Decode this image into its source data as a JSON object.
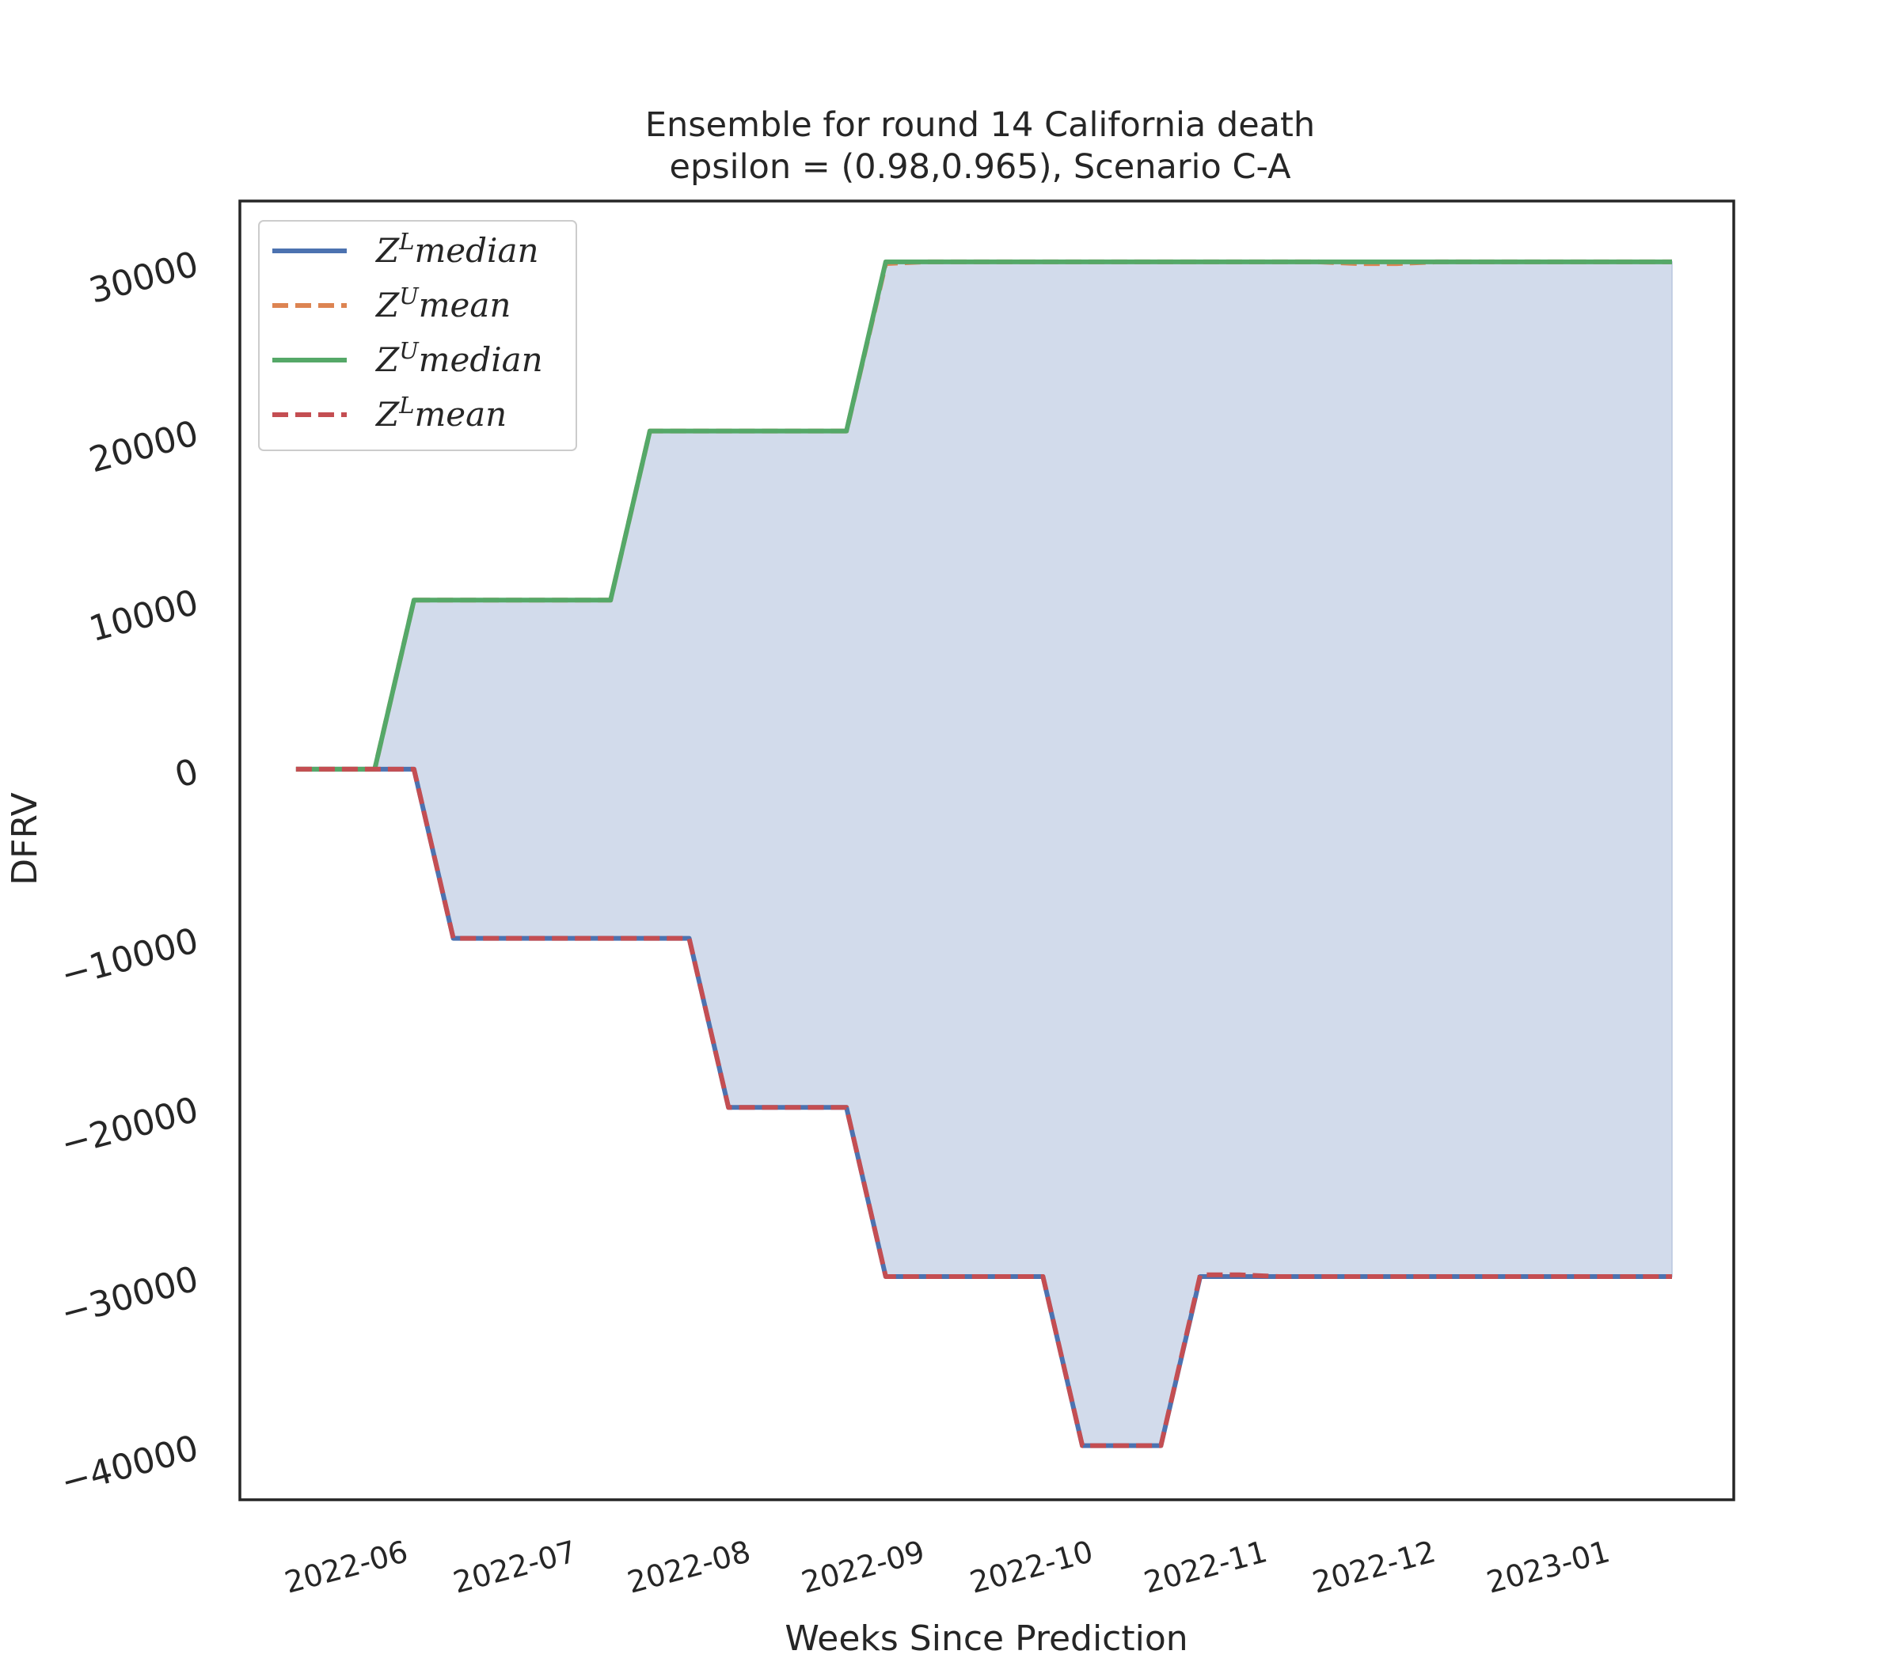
{
  "chart_data": {
    "type": "line",
    "title": "Ensemble for round 14 California  death",
    "subtitle": "epsilon = (0.98,0.965), Scenario C-A",
    "xlabel": "Weeks Since Prediction",
    "ylabel": "DFRV",
    "x_ticks": [
      "2022-06",
      "2022-07",
      "2022-08",
      "2022-09",
      "2022-10",
      "2022-11",
      "2022-12",
      "2023-01"
    ],
    "y_ticks": [
      {
        "value": 30000,
        "label": "30000"
      },
      {
        "value": 20000,
        "label": "20000"
      },
      {
        "value": 10000,
        "label": "10000"
      },
      {
        "value": 0,
        "label": "0"
      },
      {
        "value": -10000,
        "label": "−10000"
      },
      {
        "value": -20000,
        "label": "−20000"
      },
      {
        "value": -30000,
        "label": "−30000"
      },
      {
        "value": -40000,
        "label": "−40000"
      }
    ],
    "xlim": [
      "2022-05-06",
      "2023-01-27"
    ],
    "ylim": [
      -43200,
      33600
    ],
    "grid": false,
    "legend_position": "top-left",
    "fill": {
      "between": [
        "Z^U median",
        "Z^L median"
      ],
      "color": "#d2dbeb"
    },
    "series": [
      {
        "name": "Z^L median",
        "legend": {
          "base": "Z",
          "sup": "L",
          "suffix": "median"
        },
        "color": "#4c72b0",
        "dash": "solid",
        "points": [
          [
            "2022-05-16",
            0
          ],
          [
            "2022-05-23",
            0
          ],
          [
            "2022-05-30",
            0
          ],
          [
            "2022-06-06",
            0
          ],
          [
            "2022-06-13",
            -10000
          ],
          [
            "2022-06-20",
            -10000
          ],
          [
            "2022-06-27",
            -10000
          ],
          [
            "2022-07-04",
            -10000
          ],
          [
            "2022-07-11",
            -10000
          ],
          [
            "2022-07-18",
            -10000
          ],
          [
            "2022-07-25",
            -10000
          ],
          [
            "2022-08-01",
            -20000
          ],
          [
            "2022-08-08",
            -20000
          ],
          [
            "2022-08-15",
            -20000
          ],
          [
            "2022-08-22",
            -20000
          ],
          [
            "2022-08-29",
            -30000
          ],
          [
            "2022-09-05",
            -30000
          ],
          [
            "2022-09-12",
            -30000
          ],
          [
            "2022-09-19",
            -30000
          ],
          [
            "2022-09-26",
            -30000
          ],
          [
            "2022-10-03",
            -40000
          ],
          [
            "2022-10-10",
            -40000
          ],
          [
            "2022-10-17",
            -40000
          ],
          [
            "2022-10-24",
            -30000
          ],
          [
            "2022-10-31",
            -30000
          ],
          [
            "2022-11-07",
            -30000
          ],
          [
            "2022-11-14",
            -30000
          ],
          [
            "2022-11-21",
            -30000
          ],
          [
            "2022-11-28",
            -30000
          ],
          [
            "2022-12-05",
            -30000
          ],
          [
            "2022-12-12",
            -30000
          ],
          [
            "2022-12-19",
            -30000
          ],
          [
            "2022-12-26",
            -30000
          ],
          [
            "2023-01-02",
            -30000
          ],
          [
            "2023-01-09",
            -30000
          ],
          [
            "2023-01-16",
            -30000
          ]
        ]
      },
      {
        "name": "Z^U mean",
        "legend": {
          "base": "Z",
          "sup": "U",
          "suffix": "mean"
        },
        "color": "#dd8452",
        "dash": "dashed",
        "points": [
          [
            "2022-05-16",
            0
          ],
          [
            "2022-05-23",
            0
          ],
          [
            "2022-05-30",
            0
          ],
          [
            "2022-06-06",
            10000
          ],
          [
            "2022-06-13",
            10000
          ],
          [
            "2022-06-20",
            10000
          ],
          [
            "2022-06-27",
            10000
          ],
          [
            "2022-07-04",
            10000
          ],
          [
            "2022-07-11",
            10000
          ],
          [
            "2022-07-18",
            20000
          ],
          [
            "2022-07-25",
            20000
          ],
          [
            "2022-08-01",
            20000
          ],
          [
            "2022-08-08",
            20000
          ],
          [
            "2022-08-15",
            20000
          ],
          [
            "2022-08-22",
            20000
          ],
          [
            "2022-08-29",
            29900
          ],
          [
            "2022-09-05",
            30000
          ],
          [
            "2022-09-12",
            30000
          ],
          [
            "2022-09-19",
            30000
          ],
          [
            "2022-09-26",
            30000
          ],
          [
            "2022-10-03",
            30000
          ],
          [
            "2022-10-10",
            30000
          ],
          [
            "2022-10-17",
            30000
          ],
          [
            "2022-10-24",
            30000
          ],
          [
            "2022-10-31",
            30000
          ],
          [
            "2022-11-07",
            30000
          ],
          [
            "2022-11-14",
            30000
          ],
          [
            "2022-11-21",
            29900
          ],
          [
            "2022-11-28",
            29900
          ],
          [
            "2022-12-05",
            30000
          ],
          [
            "2022-12-12",
            30000
          ],
          [
            "2022-12-19",
            30000
          ],
          [
            "2022-12-26",
            30000
          ],
          [
            "2023-01-02",
            30000
          ],
          [
            "2023-01-09",
            30000
          ],
          [
            "2023-01-16",
            30000
          ]
        ]
      },
      {
        "name": "Z^U median",
        "legend": {
          "base": "Z",
          "sup": "U",
          "suffix": "median"
        },
        "color": "#55a868",
        "dash": "solid",
        "points": [
          [
            "2022-05-16",
            0
          ],
          [
            "2022-05-23",
            0
          ],
          [
            "2022-05-30",
            0
          ],
          [
            "2022-06-06",
            10000
          ],
          [
            "2022-06-13",
            10000
          ],
          [
            "2022-06-20",
            10000
          ],
          [
            "2022-06-27",
            10000
          ],
          [
            "2022-07-04",
            10000
          ],
          [
            "2022-07-11",
            10000
          ],
          [
            "2022-07-18",
            20000
          ],
          [
            "2022-07-25",
            20000
          ],
          [
            "2022-08-01",
            20000
          ],
          [
            "2022-08-08",
            20000
          ],
          [
            "2022-08-15",
            20000
          ],
          [
            "2022-08-22",
            20000
          ],
          [
            "2022-08-29",
            30000
          ],
          [
            "2022-09-05",
            30000
          ],
          [
            "2022-09-12",
            30000
          ],
          [
            "2022-09-19",
            30000
          ],
          [
            "2022-09-26",
            30000
          ],
          [
            "2022-10-03",
            30000
          ],
          [
            "2022-10-10",
            30000
          ],
          [
            "2022-10-17",
            30000
          ],
          [
            "2022-10-24",
            30000
          ],
          [
            "2022-10-31",
            30000
          ],
          [
            "2022-11-07",
            30000
          ],
          [
            "2022-11-14",
            30000
          ],
          [
            "2022-11-21",
            30000
          ],
          [
            "2022-11-28",
            30000
          ],
          [
            "2022-12-05",
            30000
          ],
          [
            "2022-12-12",
            30000
          ],
          [
            "2022-12-19",
            30000
          ],
          [
            "2022-12-26",
            30000
          ],
          [
            "2023-01-02",
            30000
          ],
          [
            "2023-01-09",
            30000
          ],
          [
            "2023-01-16",
            30000
          ]
        ]
      },
      {
        "name": "Z^L mean",
        "legend": {
          "base": "Z",
          "sup": "L",
          "suffix": "mean"
        },
        "color": "#c44e52",
        "dash": "dashed",
        "points": [
          [
            "2022-05-16",
            0
          ],
          [
            "2022-05-23",
            0
          ],
          [
            "2022-05-30",
            0
          ],
          [
            "2022-06-06",
            0
          ],
          [
            "2022-06-13",
            -10000
          ],
          [
            "2022-06-20",
            -10000
          ],
          [
            "2022-06-27",
            -10000
          ],
          [
            "2022-07-04",
            -10000
          ],
          [
            "2022-07-11",
            -10000
          ],
          [
            "2022-07-18",
            -10000
          ],
          [
            "2022-07-25",
            -10000
          ],
          [
            "2022-08-01",
            -20000
          ],
          [
            "2022-08-08",
            -20000
          ],
          [
            "2022-08-15",
            -20000
          ],
          [
            "2022-08-22",
            -20000
          ],
          [
            "2022-08-29",
            -30000
          ],
          [
            "2022-09-05",
            -30000
          ],
          [
            "2022-09-12",
            -30000
          ],
          [
            "2022-09-19",
            -30000
          ],
          [
            "2022-09-26",
            -30000
          ],
          [
            "2022-10-03",
            -40000
          ],
          [
            "2022-10-10",
            -40000
          ],
          [
            "2022-10-17",
            -40000
          ],
          [
            "2022-10-24",
            -29900
          ],
          [
            "2022-10-31",
            -29900
          ],
          [
            "2022-11-07",
            -30000
          ],
          [
            "2022-11-14",
            -30000
          ],
          [
            "2022-11-21",
            -30000
          ],
          [
            "2022-11-28",
            -30000
          ],
          [
            "2022-12-05",
            -30000
          ],
          [
            "2022-12-12",
            -30000
          ],
          [
            "2022-12-19",
            -30000
          ],
          [
            "2022-12-26",
            -30000
          ],
          [
            "2023-01-02",
            -30000
          ],
          [
            "2023-01-09",
            -30000
          ],
          [
            "2023-01-16",
            -30000
          ]
        ]
      }
    ]
  }
}
